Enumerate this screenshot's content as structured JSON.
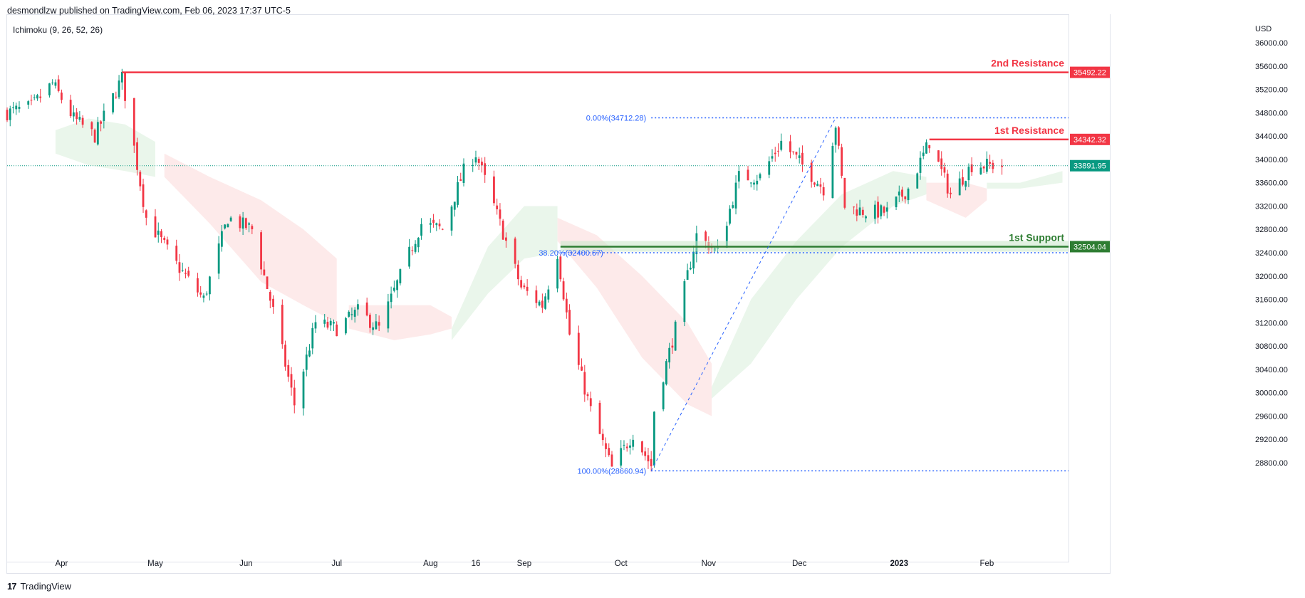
{
  "header": {
    "published": "desmondlzw published on TradingView.com, Feb 06, 2023 17:37 UTC-5"
  },
  "indicator": {
    "label": "Ichimoku (9, 26, 52, 26)"
  },
  "footer": {
    "brand": "TradingView",
    "logo_glyph": "17"
  },
  "colors": {
    "up": "#089981",
    "down": "#f23645",
    "resistance": "#f23645",
    "support": "#2e7d32",
    "fib": "#2962ff",
    "kumo_bull": "#e8f5e9",
    "kumo_bear": "#fde8e8",
    "grid_axis": "#e0e3eb"
  },
  "chart_data": {
    "type": "candlestick",
    "currency": "USD",
    "y_axis_ticks": [
      36000,
      35600,
      35200,
      34800,
      34400,
      34000,
      33600,
      33200,
      32800,
      32400,
      32000,
      31600,
      31200,
      30800,
      30400,
      30000,
      29600,
      29200,
      28800
    ],
    "y_axis_tick_labels": [
      "36000.00",
      "35600.00",
      "35200.00",
      "34800.00",
      "34400.00",
      "34000.00",
      "33600.00",
      "33200.00",
      "32800.00",
      "32400.00",
      "32000.00",
      "31600.00",
      "31200.00",
      "30800.00",
      "30400.00",
      "30000.00",
      "29600.00",
      "29200.00",
      "28800.00"
    ],
    "ylim": [
      28500,
      36300
    ],
    "x_axis_labels": [
      {
        "label": "Apr",
        "date": "2022-04-01"
      },
      {
        "label": "May",
        "date": "2022-05-02"
      },
      {
        "label": "Jun",
        "date": "2022-06-01"
      },
      {
        "label": "Jul",
        "date": "2022-07-01"
      },
      {
        "label": "Aug",
        "date": "2022-08-01"
      },
      {
        "label": "16",
        "date": "2022-08-16"
      },
      {
        "label": "Sep",
        "date": "2022-09-01"
      },
      {
        "label": "Oct",
        "date": "2022-10-03"
      },
      {
        "label": "Nov",
        "date": "2022-11-01"
      },
      {
        "label": "Dec",
        "date": "2022-12-01"
      },
      {
        "label": "2023",
        "date": "2023-01-03"
      },
      {
        "label": "Feb",
        "date": "2023-02-01"
      }
    ],
    "x_range": [
      "2022-03-14",
      "2023-02-28"
    ],
    "levels": [
      {
        "name": "2nd Resistance",
        "value": 35492.22,
        "label": "35492.22",
        "start": "2022-04-21",
        "kind": "resistance"
      },
      {
        "name": "1st Resistance",
        "value": 34342.32,
        "label": "34342.32",
        "start": "2023-01-13",
        "kind": "resistance"
      },
      {
        "name": "1st Support",
        "value": 32504.04,
        "label": "32504.04",
        "start": "2022-09-13",
        "kind": "support"
      }
    ],
    "current_price": {
      "value": 33891.95,
      "label": "33891.95"
    },
    "fibonacci": [
      {
        "label": "0.00%(34712.28)",
        "value": 34712.28,
        "start": "2022-10-13"
      },
      {
        "label": "38.20%(32400.67)",
        "value": 32400.67,
        "start": "2022-09-13"
      },
      {
        "label": "100.00%(28660.94)",
        "value": 28660.94,
        "start": "2022-10-13"
      }
    ],
    "trendline": [
      {
        "date": "2022-10-13",
        "value": 28660.94
      },
      {
        "date": "2022-12-13",
        "value": 34712.28
      }
    ],
    "anchors": [
      [
        "2022-03-14",
        34800
      ],
      [
        "2022-03-22",
        34900
      ],
      [
        "2022-03-29",
        35300
      ],
      [
        "2022-04-05",
        34700
      ],
      [
        "2022-04-12",
        34400
      ],
      [
        "2022-04-21",
        35400
      ],
      [
        "2022-04-29",
        33000
      ],
      [
        "2022-05-09",
        32200
      ],
      [
        "2022-05-18",
        31600
      ],
      [
        "2022-05-26",
        33000
      ],
      [
        "2022-06-03",
        32800
      ],
      [
        "2022-06-10",
        31400
      ],
      [
        "2022-06-17",
        29800
      ],
      [
        "2022-06-24",
        31200
      ],
      [
        "2022-07-01",
        31100
      ],
      [
        "2022-07-08",
        31400
      ],
      [
        "2022-07-15",
        31100
      ],
      [
        "2022-07-22",
        32000
      ],
      [
        "2022-07-29",
        32900
      ],
      [
        "2022-08-05",
        32800
      ],
      [
        "2022-08-12",
        33800
      ],
      [
        "2022-08-16",
        34100
      ],
      [
        "2022-08-24",
        32900
      ],
      [
        "2022-08-31",
        31800
      ],
      [
        "2022-09-07",
        31500
      ],
      [
        "2022-09-12",
        32400
      ],
      [
        "2022-09-16",
        31000
      ],
      [
        "2022-09-23",
        29700
      ],
      [
        "2022-09-30",
        28700
      ],
      [
        "2022-10-07",
        29300
      ],
      [
        "2022-10-13",
        28750
      ],
      [
        "2022-10-14",
        29700
      ],
      [
        "2022-10-21",
        31100
      ],
      [
        "2022-10-28",
        32700
      ],
      [
        "2022-11-04",
        32400
      ],
      [
        "2022-11-11",
        33700
      ],
      [
        "2022-11-18",
        33700
      ],
      [
        "2022-11-25",
        34300
      ],
      [
        "2022-12-02",
        33900
      ],
      [
        "2022-12-09",
        33500
      ],
      [
        "2022-12-13",
        34600
      ],
      [
        "2022-12-16",
        33200
      ],
      [
        "2022-12-23",
        33100
      ],
      [
        "2022-12-30",
        33100
      ],
      [
        "2023-01-06",
        33500
      ],
      [
        "2023-01-13",
        34300
      ],
      [
        "2023-01-20",
        33400
      ],
      [
        "2023-01-27",
        33900
      ],
      [
        "2023-02-03",
        33900
      ],
      [
        "2023-02-06",
        33892
      ]
    ],
    "ichimoku_cloud": [
      {
        "kind": "bull",
        "points": [
          [
            "2022-03-30",
            34500,
            34100
          ],
          [
            "2022-04-10",
            34700,
            33900
          ],
          [
            "2022-04-22",
            34600,
            33800
          ],
          [
            "2022-05-02",
            34300,
            33700
          ]
        ]
      },
      {
        "kind": "bear",
        "points": [
          [
            "2022-05-05",
            34100,
            33700
          ],
          [
            "2022-05-20",
            33700,
            32900
          ],
          [
            "2022-06-06",
            33300,
            31900
          ],
          [
            "2022-06-20",
            32800,
            31500
          ],
          [
            "2022-07-01",
            32300,
            31200
          ]
        ]
      },
      {
        "kind": "bear",
        "points": [
          [
            "2022-07-05",
            31500,
            31100
          ],
          [
            "2022-07-20",
            31500,
            30900
          ],
          [
            "2022-08-01",
            31500,
            31000
          ],
          [
            "2022-08-08",
            31300,
            31100
          ]
        ]
      },
      {
        "kind": "bull",
        "points": [
          [
            "2022-08-08",
            30900,
            31100
          ],
          [
            "2022-08-20",
            31700,
            32500
          ],
          [
            "2022-09-01",
            32300,
            33200
          ],
          [
            "2022-09-12",
            32400,
            33200
          ]
        ]
      },
      {
        "kind": "bear",
        "points": [
          [
            "2022-09-12",
            33000,
            32600
          ],
          [
            "2022-09-25",
            32700,
            31800
          ],
          [
            "2022-10-10",
            32000,
            30600
          ],
          [
            "2022-10-25",
            31200,
            29800
          ],
          [
            "2022-11-02",
            30500,
            29600
          ]
        ]
      },
      {
        "kind": "bull",
        "points": [
          [
            "2022-11-02",
            29900,
            30100
          ],
          [
            "2022-11-15",
            30500,
            31600
          ],
          [
            "2022-11-30",
            31600,
            32600
          ],
          [
            "2022-12-15",
            32500,
            33400
          ],
          [
            "2023-01-01",
            33200,
            33800
          ],
          [
            "2023-01-12",
            33400,
            33700
          ]
        ]
      },
      {
        "kind": "bear",
        "points": [
          [
            "2023-01-12",
            33600,
            33300
          ],
          [
            "2023-01-25",
            33600,
            33000
          ],
          [
            "2023-02-01",
            33500,
            33300
          ]
        ]
      },
      {
        "kind": "bull",
        "points": [
          [
            "2023-02-01",
            33500,
            33600
          ],
          [
            "2023-02-12",
            33500,
            33600
          ],
          [
            "2023-02-26",
            33600,
            33800
          ]
        ]
      }
    ]
  }
}
